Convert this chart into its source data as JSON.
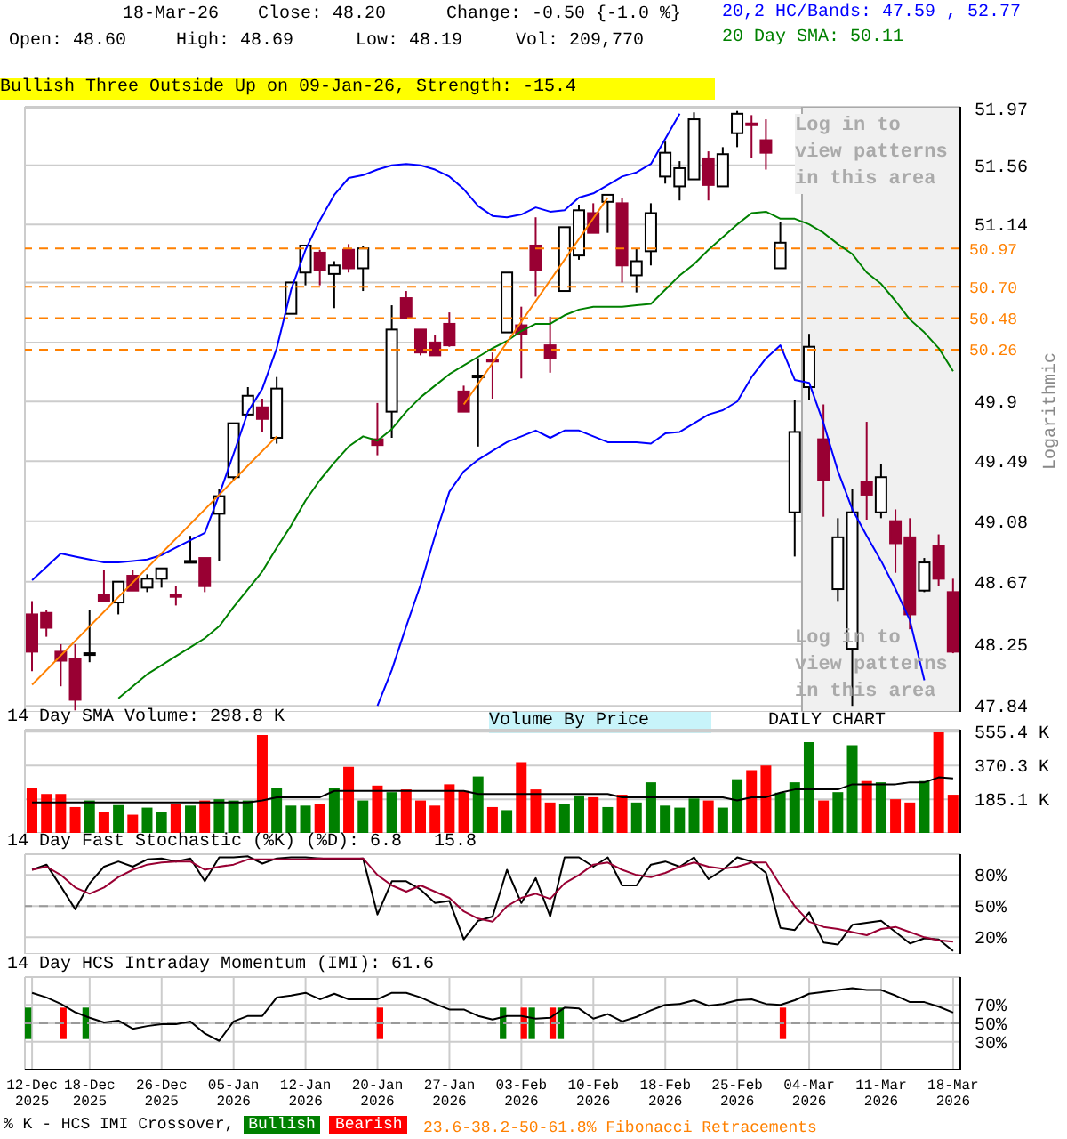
{
  "chart_data": [
    {
      "type": "candlestick",
      "log": true,
      "grid": true,
      "legend": "top right",
      "tick_labels": "y",
      "ylabel": "Logarithmic",
      "categories": [
        "12-Dec 2025",
        null,
        null,
        null,
        "18-Dec 2025",
        null,
        null,
        null,
        null,
        "26-Dec 2025",
        null,
        null,
        null,
        null,
        "05-Jan 2026",
        null,
        null,
        null,
        null,
        "12-Jan 2026",
        null,
        null,
        null,
        null,
        "20-Jan 2026",
        null,
        null,
        null,
        null,
        "27-Jan 2026",
        null,
        null,
        null,
        null,
        "03-Feb 2026",
        null,
        null,
        null,
        null,
        "10-Feb 2026",
        null,
        null,
        null,
        null,
        "18-Feb 2026",
        null,
        null,
        null,
        null,
        "25-Feb 2026",
        null,
        null,
        null,
        null,
        "04-Mar 2026",
        null,
        null,
        null,
        null,
        "11-Mar 2026",
        null,
        null,
        null,
        null,
        "18-Mar 2026"
      ],
      "ylim": [
        47.8,
        51.98
      ],
      "yticks": [
        47.84,
        48.25,
        48.67,
        49.08,
        49.49,
        49.9,
        {
          "value": 50.31,
          "label": null
        },
        {
          "value": 50.73,
          "label": null
        },
        51.14,
        51.56,
        51.97
      ],
      "series": [
        {
          "type": "line",
          "name": "20,2 HC/Bands: 47.59 , 52.77",
          "color": "#0000ff",
          "values": [
            48.68,
            48.77,
            48.86,
            48.84,
            48.82,
            48.8,
            48.8,
            48.81,
            48.82,
            48.85,
            48.9,
            48.95,
            49.0,
            49.26,
            49.54,
            49.83,
            49.99,
            50.27,
            50.68,
            50.96,
            51.17,
            51.35,
            51.47,
            51.49,
            51.53,
            51.56,
            51.57,
            51.56,
            51.53,
            51.48,
            51.39,
            51.27,
            51.2,
            51.19,
            51.21,
            51.26,
            51.23,
            51.24,
            51.33,
            51.36,
            51.42,
            51.48,
            51.51,
            51.57,
            51.75,
            51.93,
            null,
            null,
            null,
            null,
            null,
            null,
            null,
            null,
            null,
            null,
            null,
            null,
            null,
            null,
            null,
            null,
            null,
            null,
            null
          ]
        },
        {
          "type": "line",
          "color": "#0000ff",
          "values": [
            null,
            null,
            null,
            null,
            null,
            null,
            null,
            null,
            null,
            null,
            null,
            null,
            null,
            null,
            null,
            null,
            null,
            null,
            null,
            null,
            null,
            null,
            null,
            null,
            47.84,
            48.08,
            48.37,
            48.65,
            48.98,
            49.28,
            49.42,
            49.5,
            49.56,
            49.62,
            49.66,
            49.7,
            49.65,
            49.7,
            49.7,
            49.66,
            49.62,
            49.62,
            49.62,
            49.61,
            49.68,
            49.69,
            49.75,
            49.81,
            49.84,
            49.9,
            50.07,
            50.2,
            50.29,
            50.05,
            50.03,
            49.75,
            49.42,
            49.16,
            48.98,
            48.81,
            48.62,
            48.41,
            48.01,
            null,
            null
          ]
        },
        {
          "type": "line",
          "name": "20 Day SMA: 50.11",
          "color": "#008000",
          "values": [
            null,
            null,
            null,
            null,
            null,
            null,
            47.89,
            47.97,
            48.05,
            48.11,
            48.17,
            48.23,
            48.29,
            48.37,
            48.5,
            48.62,
            48.74,
            48.9,
            49.05,
            49.22,
            49.36,
            49.48,
            49.59,
            49.66,
            49.63,
            49.71,
            49.83,
            49.93,
            50.01,
            50.09,
            50.15,
            50.21,
            50.27,
            50.32,
            50.39,
            50.44,
            50.44,
            50.5,
            50.54,
            50.56,
            50.56,
            50.56,
            50.57,
            50.58,
            50.68,
            50.78,
            50.86,
            50.96,
            51.05,
            51.14,
            51.22,
            51.23,
            51.18,
            51.18,
            51.14,
            51.08,
            51.0,
            50.93,
            50.8,
            50.72,
            50.6,
            50.47,
            50.38,
            50.27,
            50.11
          ]
        },
        {
          "type": "line",
          "color": "#ff8000",
          "values": [
            47.98,
            null,
            null,
            null,
            null,
            null,
            null,
            null,
            null,
            null,
            null,
            null,
            null,
            null,
            null,
            null,
            null,
            49.66,
            null,
            null,
            null,
            null,
            null,
            null,
            null,
            null,
            null,
            null,
            null,
            null,
            null,
            null,
            null,
            null,
            null,
            null,
            null,
            null,
            null,
            null,
            null,
            null,
            null,
            null,
            null,
            null,
            null,
            null,
            null,
            null,
            null,
            null,
            null,
            null,
            null,
            null,
            null,
            null,
            null,
            null,
            null,
            null,
            null,
            null,
            null
          ]
        },
        {
          "type": "line",
          "color": "#ff8000",
          "values": [
            null,
            null,
            null,
            null,
            null,
            null,
            null,
            null,
            null,
            null,
            null,
            null,
            null,
            null,
            null,
            null,
            null,
            null,
            null,
            null,
            null,
            null,
            null,
            null,
            null,
            null,
            null,
            null,
            null,
            null,
            49.88,
            null,
            null,
            null,
            null,
            null,
            null,
            null,
            null,
            null,
            51.33,
            null,
            null,
            null,
            null,
            null,
            null,
            null,
            null,
            null,
            null,
            null,
            null,
            null,
            null,
            null,
            null,
            null,
            null,
            null,
            null,
            null,
            null,
            null,
            null
          ]
        },
        {
          "colors": [
            "#990033",
            "#990033",
            "#990033",
            "#990033",
            "#ffffff",
            "#990033",
            "#ffffff",
            "#990033",
            "#ffffff",
            "#ffffff",
            "#990033",
            "#ffffff",
            "#990033",
            "#ffffff",
            "#ffffff",
            "#ffffff",
            "#990033",
            "#ffffff",
            "#ffffff",
            "#ffffff",
            "#990033",
            "#ffffff",
            "#990033",
            "#ffffff",
            "#990033",
            "#ffffff",
            "#990033",
            "#990033",
            "#990033",
            "#990033",
            "#990033",
            "#ffffff",
            "#990033",
            "#ffffff",
            "#990033",
            "#990033",
            "#990033",
            "#ffffff",
            "#ffffff",
            "#990033",
            "#ffffff",
            "#990033",
            "#ffffff",
            "#ffffff",
            "#ffffff",
            "#ffffff",
            "#ffffff",
            "#990033",
            "#ffffff",
            "#ffffff",
            "#990033",
            "#990033",
            "#ffffff",
            "#ffffff",
            "#ffffff",
            "#990033",
            "#ffffff",
            "#ffffff",
            "#990033",
            "#ffffff",
            "#990033",
            "#990033",
            "#ffffff",
            "#990033",
            "#990033"
          ],
          "ohlc": [
            [
              48.45,
              48.54,
              48.07,
              48.2
            ],
            [
              48.46,
              48.48,
              48.3,
              48.36
            ],
            [
              48.2,
              48.25,
              47.97,
              48.14
            ],
            [
              48.15,
              48.25,
              47.81,
              47.88
            ],
            [
              48.18,
              48.48,
              48.13,
              48.19
            ],
            [
              48.58,
              48.75,
              48.54,
              48.54
            ],
            [
              48.53,
              48.67,
              48.45,
              48.67
            ],
            [
              48.71,
              48.75,
              48.61,
              48.61
            ],
            [
              48.63,
              48.72,
              48.6,
              48.69
            ],
            [
              48.69,
              48.76,
              48.63,
              48.76
            ],
            [
              48.58,
              48.64,
              48.51,
              48.57
            ],
            [
              48.8,
              48.98,
              48.8,
              48.81
            ],
            [
              48.83,
              48.83,
              48.6,
              48.64
            ],
            [
              49.13,
              49.3,
              48.81,
              49.25
            ],
            [
              49.38,
              49.75,
              49.36,
              49.75
            ],
            [
              49.81,
              50.0,
              49.8,
              49.94
            ],
            [
              49.86,
              49.92,
              49.69,
              49.78
            ],
            [
              49.65,
              50.07,
              49.61,
              49.99
            ],
            [
              50.51,
              50.73,
              50.51,
              50.73
            ],
            [
              50.8,
              50.99,
              50.71,
              50.99
            ],
            [
              50.94,
              50.96,
              50.71,
              50.82
            ],
            [
              50.79,
              50.88,
              50.55,
              50.85
            ],
            [
              50.96,
              51.0,
              50.8,
              50.83
            ],
            [
              50.83,
              50.99,
              50.67,
              50.97
            ],
            [
              49.64,
              49.89,
              49.53,
              49.6
            ],
            [
              49.83,
              50.57,
              49.65,
              50.4
            ],
            [
              50.62,
              50.67,
              50.48,
              50.48
            ],
            [
              50.4,
              50.4,
              50.22,
              50.24
            ],
            [
              50.31,
              50.36,
              50.22,
              50.22
            ],
            [
              50.44,
              50.52,
              50.28,
              50.29
            ],
            [
              49.97,
              50.01,
              49.83,
              49.83
            ],
            [
              50.07,
              50.2,
              49.59,
              50.08
            ],
            [
              50.19,
              50.24,
              49.92,
              50.18
            ],
            [
              50.38,
              50.8,
              50.38,
              50.8
            ],
            [
              50.43,
              50.56,
              50.06,
              50.37
            ],
            [
              50.99,
              51.19,
              50.63,
              50.82
            ],
            [
              50.29,
              50.49,
              50.1,
              50.2
            ],
            [
              50.67,
              51.12,
              50.67,
              51.12
            ],
            [
              50.92,
              51.28,
              50.89,
              51.24
            ],
            [
              51.22,
              51.29,
              51.08,
              51.08
            ],
            [
              51.3,
              51.35,
              51.08,
              51.35
            ],
            [
              51.29,
              51.33,
              50.73,
              50.85
            ],
            [
              50.78,
              50.97,
              50.66,
              50.88
            ],
            [
              50.95,
              51.29,
              50.85,
              51.22
            ],
            [
              51.48,
              51.73,
              51.43,
              51.65
            ],
            [
              51.41,
              51.59,
              51.31,
              51.54
            ],
            [
              51.46,
              51.94,
              51.46,
              51.89
            ],
            [
              51.61,
              51.66,
              51.31,
              51.42
            ],
            [
              51.41,
              51.69,
              51.41,
              51.64
            ],
            [
              51.79,
              51.95,
              51.69,
              51.93
            ],
            [
              51.86,
              51.92,
              51.61,
              51.85
            ],
            [
              51.74,
              51.89,
              51.53,
              51.65
            ],
            [
              50.83,
              51.16,
              50.83,
              51.01
            ],
            [
              49.14,
              49.91,
              48.84,
              49.69
            ],
            [
              50.0,
              50.37,
              49.91,
              50.28
            ],
            [
              49.64,
              49.88,
              49.11,
              49.36
            ],
            [
              48.62,
              49.1,
              48.54,
              48.97
            ],
            [
              48.22,
              49.3,
              47.84,
              49.14
            ],
            [
              49.35,
              49.76,
              49.09,
              49.26
            ],
            [
              49.14,
              49.47,
              49.1,
              49.38
            ],
            [
              49.08,
              49.16,
              48.73,
              48.93
            ],
            [
              48.97,
              49.1,
              48.35,
              48.45
            ],
            [
              48.61,
              48.83,
              48.6,
              48.8
            ],
            [
              48.91,
              48.99,
              48.64,
              48.69
            ],
            [
              48.6,
              48.69,
              48.19,
              48.2
            ]
          ]
        }
      ],
      "ref_lines": [
        {
          "axis": "y",
          "value": 50.97,
          "label": "50.97",
          "color": "#ff8000",
          "line_style": "dashed"
        },
        {
          "axis": "y",
          "value": 50.7,
          "label": "50.70",
          "color": "#ff8000",
          "line_style": "dashed"
        },
        {
          "axis": "y",
          "value": 50.48,
          "label": "50.48",
          "color": "#ff8000",
          "line_style": "dashed"
        },
        {
          "axis": "y",
          "value": 50.26,
          "label": "50.26",
          "color": "#ff8000",
          "line_style": "dashed"
        }
      ],
      "bands": [
        {
          "axis": "x",
          "from": "04-Mar 2026",
          "to": "18-Mar 2026",
          "label": null,
          "color": "#f0f0f0"
        }
      ],
      "annotations": [
        "18-Mar-26",
        "Close: 48.20",
        "Change: -0.50 {-1.0 %}",
        "Open: 48.60",
        "High: 48.69",
        "Low: 48.19",
        "Vol: 209,770",
        "Bullish Three Outside Up on 09-Jan-26, Strength: -15.4",
        "Log in to view patterns in this area",
        "Log in to view patterns in this area",
        "Volume By Price",
        "DAILY CHART",
        "23.6-38.2-50-61.8% Fibonacci Retracements"
      ]
    },
    {
      "type": "bar",
      "title": "14 Day SMA Volume: 298.8 K",
      "grid": true,
      "tick_labels": "y",
      "categories": [
        "12-Dec 2025",
        null,
        null,
        null,
        "18-Dec 2025",
        null,
        null,
        null,
        null,
        "26-Dec 2025",
        null,
        null,
        null,
        null,
        "05-Jan 2026",
        null,
        null,
        null,
        null,
        "12-Jan 2026",
        null,
        null,
        null,
        null,
        "20-Jan 2026",
        null,
        null,
        null,
        null,
        "27-Jan 2026",
        null,
        null,
        null,
        null,
        "03-Feb 2026",
        null,
        null,
        null,
        null,
        "10-Feb 2026",
        null,
        null,
        null,
        null,
        "18-Feb 2026",
        null,
        null,
        null,
        null,
        "25-Feb 2026",
        null,
        null,
        null,
        null,
        "04-Mar 2026",
        null,
        null,
        null,
        null,
        "11-Mar 2026",
        null,
        null,
        null,
        null,
        "18-Mar 2026"
      ],
      "ylim": [
        0,
        567
      ],
      "yticks": [
        {
          "value": 185.1,
          "label": "185.1 K"
        },
        {
          "value": 370.3,
          "label": "370.3 K"
        },
        {
          "value": 555.4,
          "label": "555.4 K"
        }
      ],
      "series": [
        {
          "values": [
            249,
            214,
            214,
            142,
            178,
            114,
            153,
            100,
            139,
            114,
            160,
            150,
            178,
            185,
            178,
            178,
            538,
            249,
            150,
            150,
            160,
            249,
            363,
            178,
            260,
            224,
            239,
            178,
            150,
            267,
            231,
            310,
            142,
            125,
            388,
            239,
            167,
            160,
            206,
            196,
            142,
            210,
            167,
            278,
            150,
            139,
            189,
            178,
            139,
            295,
            345,
            370,
            221,
            278,
            498,
            178,
            224,
            481,
            285,
            278,
            185,
            167,
            285,
            552,
            209.8
          ],
          "colors": [
            "#ff0000",
            "#ff0000",
            "#ff0000",
            "#ff0000",
            "#008000",
            "#ff0000",
            "#008000",
            "#ff0000",
            "#008000",
            "#008000",
            "#ff0000",
            "#008000",
            "#ff0000",
            "#008000",
            "#008000",
            "#008000",
            "#ff0000",
            "#008000",
            "#008000",
            "#008000",
            "#ff0000",
            "#008000",
            "#ff0000",
            "#008000",
            "#ff0000",
            "#008000",
            "#ff0000",
            "#ff0000",
            "#ff0000",
            "#ff0000",
            "#ff0000",
            "#008000",
            "#ff0000",
            "#008000",
            "#ff0000",
            "#ff0000",
            "#ff0000",
            "#008000",
            "#008000",
            "#ff0000",
            "#008000",
            "#ff0000",
            "#008000",
            "#008000",
            "#008000",
            "#008000",
            "#008000",
            "#ff0000",
            "#008000",
            "#008000",
            "#ff0000",
            "#ff0000",
            "#008000",
            "#008000",
            "#008000",
            "#ff0000",
            "#008000",
            "#008000",
            "#ff0000",
            "#008000",
            "#ff0000",
            "#ff0000",
            "#008000",
            "#ff0000",
            "#ff0000"
          ]
        },
        {
          "type": "line",
          "color": "#000000",
          "values": [
            167,
            167,
            167,
            167,
            167,
            167,
            167,
            167,
            167,
            167,
            167,
            167,
            167,
            167,
            167,
            167,
            178,
            196,
            196,
            196,
            196,
            231,
            231,
            231,
            231,
            231,
            231,
            231,
            231,
            231,
            231,
            214,
            214,
            214,
            214,
            214,
            214,
            214,
            214,
            214,
            214,
            196,
            196,
            196,
            196,
            196,
            196,
            196,
            196,
            178,
            196,
            196,
            221,
            239,
            239,
            239,
            239,
            267,
            267,
            267,
            267,
            278,
            278,
            305,
            298.8
          ]
        }
      ]
    },
    {
      "type": "line",
      "title": "14 Day Fast Stochastic (%K) (%D): 6.8   15.8",
      "grid": true,
      "tick_labels": "y",
      "categories": [
        "12-Dec 2025",
        null,
        null,
        null,
        "18-Dec 2025",
        null,
        null,
        null,
        null,
        "26-Dec 2025",
        null,
        null,
        null,
        null,
        "05-Jan 2026",
        null,
        null,
        null,
        null,
        "12-Jan 2026",
        null,
        null,
        null,
        null,
        "20-Jan 2026",
        null,
        null,
        null,
        null,
        "27-Jan 2026",
        null,
        null,
        null,
        null,
        "03-Feb 2026",
        null,
        null,
        null,
        null,
        "10-Feb 2026",
        null,
        null,
        null,
        null,
        "18-Feb 2026",
        null,
        null,
        null,
        null,
        "25-Feb 2026",
        null,
        null,
        null,
        null,
        "04-Mar 2026",
        null,
        null,
        null,
        null,
        "11-Mar 2026",
        null,
        null,
        null,
        null,
        "18-Mar 2026"
      ],
      "ylim": [
        4,
        100
      ],
      "yticks": [
        {
          "value": 20,
          "label": "20%"
        },
        {
          "value": 50,
          "label": "50%"
        },
        {
          "value": 80,
          "label": "80%"
        }
      ],
      "ref_lines": [
        {
          "axis": "y",
          "value": 50,
          "label": null,
          "color": "#999999",
          "line_style": "dashed"
        }
      ],
      "series": [
        {
          "color": "#000000",
          "values": [
            85,
            90,
            69,
            47,
            72,
            88,
            93,
            88,
            95,
            96,
            93,
            96,
            74,
            97,
            97,
            98,
            91,
            96,
            97,
            97,
            96,
            95,
            95,
            96,
            42,
            74,
            74,
            66,
            53,
            55,
            18,
            36,
            40,
            85,
            53,
            77,
            40,
            97,
            97,
            88,
            97,
            70,
            70,
            90,
            93,
            88,
            97,
            76,
            85,
            97,
            93,
            82,
            29,
            27,
            44,
            15,
            13,
            32,
            34,
            36,
            25,
            14,
            19,
            18,
            6.8
          ]
        },
        {
          "color": "#990033",
          "values": [
            85,
            88,
            80,
            68,
            62,
            68,
            78,
            85,
            90,
            92,
            93,
            93,
            85,
            88,
            90,
            95,
            95,
            95,
            95,
            95,
            96,
            96,
            96,
            96,
            80,
            70,
            64,
            70,
            64,
            58,
            45,
            38,
            35,
            50,
            58,
            62,
            57,
            72,
            80,
            90,
            92,
            85,
            80,
            78,
            82,
            88,
            92,
            88,
            86,
            88,
            92,
            92,
            70,
            50,
            35,
            30,
            28,
            25,
            22,
            28,
            30,
            25,
            20,
            17,
            15.8
          ]
        }
      ]
    },
    {
      "type": "line",
      "title": "14 Day HCS Intraday Momentum (IMI): 61.6",
      "grid": true,
      "legend": "bottom",
      "legend_title": "% K - HCS IMI Crossover,",
      "categories": [
        "12-Dec 2025",
        null,
        null,
        null,
        "18-Dec 2025",
        null,
        null,
        null,
        null,
        "26-Dec 2025",
        null,
        null,
        null,
        null,
        "05-Jan 2026",
        null,
        null,
        null,
        null,
        "12-Jan 2026",
        null,
        null,
        null,
        null,
        "20-Jan 2026",
        null,
        null,
        null,
        null,
        "27-Jan 2026",
        null,
        null,
        null,
        null,
        "03-Feb 2026",
        null,
        null,
        null,
        null,
        "10-Feb 2026",
        null,
        null,
        null,
        null,
        "18-Feb 2026",
        null,
        null,
        null,
        null,
        "25-Feb 2026",
        null,
        null,
        null,
        null,
        "04-Mar 2026",
        null,
        null,
        null,
        null,
        "11-Mar 2026",
        null,
        null,
        null,
        null,
        "18-Mar 2026"
      ],
      "ylim": [
        0,
        100
      ],
      "yticks": [
        {
          "value": 30,
          "label": "30%"
        },
        {
          "value": 50,
          "label": "50%"
        },
        {
          "value": 70,
          "label": "70%"
        }
      ],
      "ref_lines": [
        {
          "axis": "y",
          "value": 50,
          "label": null,
          "color": "#999999",
          "line_style": "dashed"
        }
      ],
      "series": [
        {
          "type": "bar",
          "name": "Bullish",
          "color": "#008000",
          "values": [
            34,
            null,
            null,
            null,
            34,
            null,
            null,
            null,
            null,
            null,
            null,
            null,
            null,
            null,
            null,
            null,
            null,
            null,
            null,
            null,
            null,
            null,
            null,
            null,
            null,
            null,
            null,
            null,
            null,
            null,
            null,
            null,
            null,
            34,
            null,
            34,
            null,
            34,
            null,
            null,
            null,
            null,
            null,
            null,
            null,
            null,
            null,
            null,
            null,
            null,
            null,
            null,
            null,
            null,
            null,
            null,
            null,
            null,
            null,
            null,
            null,
            null,
            null,
            null,
            null
          ],
          "base": [
            33,
            null,
            null,
            null,
            33,
            null,
            null,
            null,
            null,
            null,
            null,
            null,
            null,
            null,
            null,
            null,
            null,
            null,
            null,
            null,
            null,
            null,
            null,
            null,
            null,
            null,
            null,
            null,
            null,
            null,
            null,
            null,
            null,
            33,
            null,
            33,
            null,
            33,
            null,
            null,
            null,
            null,
            null,
            null,
            null,
            null,
            null,
            null,
            null,
            null,
            null,
            null,
            null,
            null,
            null,
            null,
            null,
            null,
            null,
            null,
            null,
            null,
            null,
            null,
            null
          ]
        },
        {
          "type": "bar",
          "name": "Bearish",
          "color": "#ff0000",
          "values": [
            null,
            null,
            34,
            null,
            null,
            null,
            null,
            null,
            null,
            null,
            null,
            null,
            null,
            null,
            null,
            null,
            null,
            null,
            null,
            null,
            null,
            null,
            null,
            null,
            34,
            null,
            null,
            null,
            null,
            null,
            null,
            null,
            null,
            null,
            34,
            null,
            34,
            null,
            null,
            null,
            null,
            null,
            null,
            null,
            null,
            null,
            null,
            null,
            null,
            null,
            null,
            null,
            34,
            null,
            null,
            null,
            null,
            null,
            null,
            null,
            null,
            null,
            null,
            null,
            null
          ],
          "base": [
            null,
            null,
            33,
            null,
            null,
            null,
            null,
            null,
            null,
            null,
            null,
            null,
            null,
            null,
            null,
            null,
            null,
            null,
            null,
            null,
            null,
            null,
            null,
            null,
            33,
            null,
            null,
            null,
            null,
            null,
            null,
            null,
            null,
            null,
            33,
            null,
            33,
            null,
            null,
            null,
            null,
            null,
            null,
            null,
            null,
            null,
            null,
            null,
            null,
            null,
            null,
            null,
            33,
            null,
            null,
            null,
            null,
            null,
            null,
            null,
            null,
            null,
            null,
            null,
            null
          ]
        },
        {
          "color": "#000000",
          "values": [
            83,
            78,
            71,
            62,
            56,
            51,
            53,
            44,
            47,
            49,
            49,
            52,
            39,
            31,
            52,
            58,
            58,
            78,
            80,
            83,
            76,
            82,
            76,
            76,
            76,
            83,
            83,
            78,
            71,
            65,
            65,
            58,
            54,
            58,
            58,
            55,
            56,
            67,
            66,
            55,
            60,
            52,
            57,
            64,
            70,
            71,
            75,
            69,
            71,
            75,
            76,
            71,
            70,
            75,
            82,
            84,
            86,
            88,
            86,
            86,
            80,
            73,
            73,
            68,
            61.6
          ]
        }
      ]
    }
  ]
}
